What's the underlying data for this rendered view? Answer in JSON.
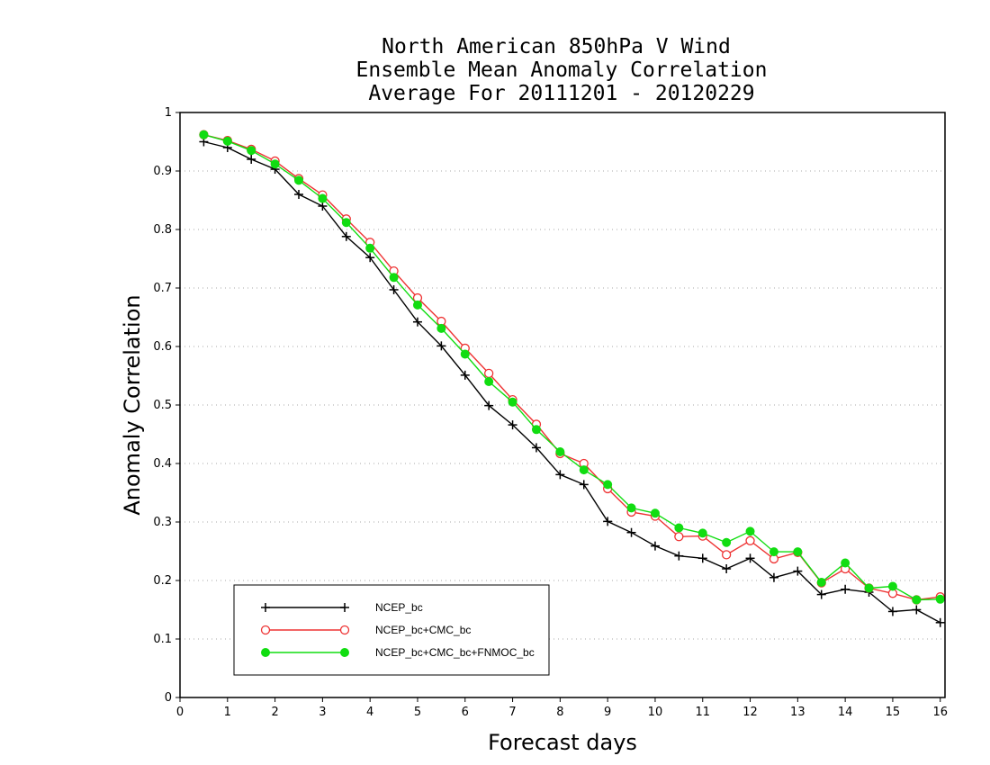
{
  "chart_data": {
    "type": "line",
    "title": [
      "North American 850hPa V Wind",
      "Ensemble Mean Anomaly Correlation",
      "Average For 20111201 - 20120229"
    ],
    "xlabel": "Forecast days",
    "ylabel": "Anomaly Correlation",
    "xlim": [
      0,
      16.1
    ],
    "ylim": [
      0,
      1
    ],
    "xticks": [
      0,
      1,
      2,
      3,
      4,
      5,
      6,
      7,
      8,
      9,
      10,
      11,
      12,
      13,
      14,
      15,
      16
    ],
    "yticks": [
      0,
      0.1,
      0.2,
      0.3,
      0.4,
      0.5,
      0.6,
      0.7,
      0.8,
      0.9,
      1
    ],
    "grid": "horizontal dotted",
    "legend_position": "bottom-left",
    "x": [
      0.5,
      1,
      1.5,
      2,
      2.5,
      3,
      3.5,
      4,
      4.5,
      5,
      5.5,
      6,
      6.5,
      7,
      7.5,
      8,
      8.5,
      9,
      9.5,
      10,
      10.5,
      11,
      11.5,
      12,
      12.5,
      13,
      13.5,
      14,
      14.5,
      15,
      15.5,
      16
    ],
    "series": [
      {
        "name": "NCEP_bc",
        "color": "#000000",
        "marker": "plus",
        "values": [
          0.95,
          0.94,
          0.92,
          0.903,
          0.86,
          0.84,
          0.788,
          0.752,
          0.697,
          0.642,
          0.601,
          0.551,
          0.499,
          0.466,
          0.427,
          0.381,
          0.364,
          0.301,
          0.282,
          0.259,
          0.242,
          0.238,
          0.22,
          0.238,
          0.205,
          0.216,
          0.176,
          0.185,
          0.18,
          0.147,
          0.15,
          0.128
        ]
      },
      {
        "name": "NCEP_bc+CMC_bc",
        "color": "#ee3333",
        "marker": "open-circle",
        "values": [
          0.962,
          0.952,
          0.937,
          0.917,
          0.887,
          0.859,
          0.818,
          0.778,
          0.729,
          0.683,
          0.643,
          0.597,
          0.554,
          0.509,
          0.467,
          0.417,
          0.4,
          0.357,
          0.317,
          0.31,
          0.275,
          0.276,
          0.244,
          0.268,
          0.237,
          0.248,
          0.196,
          0.22,
          0.187,
          0.178,
          0.167,
          0.172
        ]
      },
      {
        "name": "NCEP_bc+CMC_bc+FNMOC_bc",
        "color": "#11dd11",
        "marker": "filled-circle",
        "values": [
          0.962,
          0.951,
          0.935,
          0.912,
          0.884,
          0.853,
          0.812,
          0.768,
          0.718,
          0.671,
          0.631,
          0.587,
          0.54,
          0.505,
          0.458,
          0.42,
          0.389,
          0.364,
          0.324,
          0.315,
          0.29,
          0.281,
          0.265,
          0.284,
          0.249,
          0.249,
          0.197,
          0.23,
          0.187,
          0.19,
          0.167,
          0.168
        ]
      }
    ]
  }
}
